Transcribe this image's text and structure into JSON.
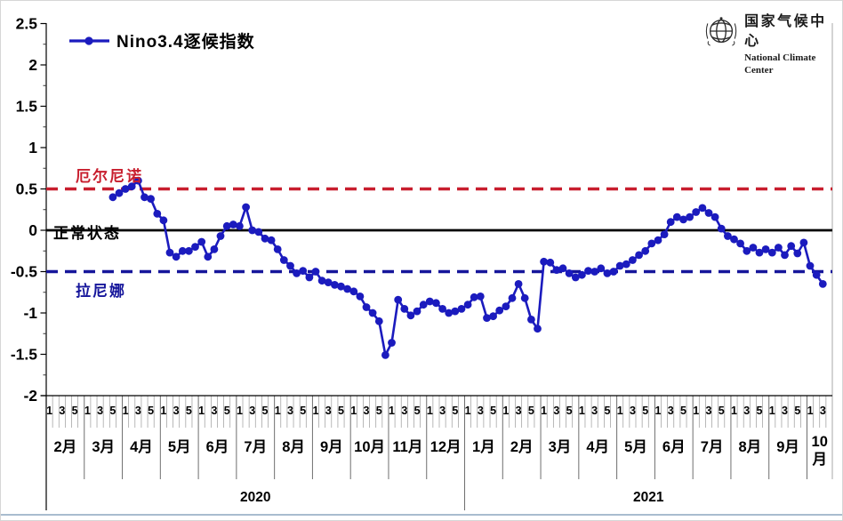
{
  "legend": {
    "label": "Nino3.4逐候指数"
  },
  "logo": {
    "cn": "国家气候中心",
    "en": "National Climate Center"
  },
  "annotations": {
    "el_nino": "厄尔尼诺",
    "normal": "正常状态",
    "la_nina": "拉尼娜"
  },
  "colors": {
    "series": "#1b1bbe",
    "el_nino_line": "#c81e2e",
    "la_nina_line": "#16169b",
    "normal_line": "#000000",
    "grid": "#8f8f8f",
    "axis": "#000000"
  },
  "chart_data": {
    "type": "line",
    "title": "Nino3.4逐候指数",
    "ylabel": "",
    "xlabel": "",
    "ylim": [
      -2,
      2.5
    ],
    "y_ticks": [
      2.5,
      2,
      1.5,
      1,
      0.5,
      0,
      -0.5,
      -1,
      -1.5,
      -2
    ],
    "pentad_tick_labels": [
      "1",
      "3",
      "5"
    ],
    "thresholds": {
      "el_nino": 0.5,
      "normal": 0,
      "la_nina": -0.5
    },
    "x_axis": {
      "years": [
        {
          "label": "2020",
          "months": [
            {
              "label": "2月",
              "pentads": 6
            },
            {
              "label": "3月",
              "pentads": 6
            },
            {
              "label": "4月",
              "pentads": 6
            },
            {
              "label": "5月",
              "pentads": 6
            },
            {
              "label": "6月",
              "pentads": 6
            },
            {
              "label": "7月",
              "pentads": 6
            },
            {
              "label": "8月",
              "pentads": 6
            },
            {
              "label": "9月",
              "pentads": 6
            },
            {
              "label": "10月",
              "pentads": 6
            },
            {
              "label": "11月",
              "pentads": 6
            },
            {
              "label": "12月",
              "pentads": 6
            }
          ]
        },
        {
          "label": "2021",
          "months": [
            {
              "label": "1月",
              "pentads": 6
            },
            {
              "label": "2月",
              "pentads": 6
            },
            {
              "label": "3月",
              "pentads": 6
            },
            {
              "label": "4月",
              "pentads": 6
            },
            {
              "label": "5月",
              "pentads": 6
            },
            {
              "label": "6月",
              "pentads": 6
            },
            {
              "label": "7月",
              "pentads": 6
            },
            {
              "label": "8月",
              "pentads": 6
            },
            {
              "label": "9月",
              "pentads": 6
            },
            {
              "label": "10月",
              "pentads": 4
            }
          ]
        }
      ]
    },
    "series": [
      {
        "name": "Nino3.4逐候指数",
        "start_pentad_offset": 10,
        "start_note": "first value = 2020年3月第5候; one value per pentad (候)",
        "values": [
          0.4,
          0.45,
          0.5,
          0.53,
          0.6,
          0.4,
          0.38,
          0.2,
          0.12,
          -0.27,
          -0.32,
          -0.25,
          -0.25,
          -0.2,
          -0.14,
          -0.32,
          -0.23,
          -0.07,
          0.05,
          0.07,
          0.05,
          0.28,
          0.0,
          -0.02,
          -0.1,
          -0.12,
          -0.23,
          -0.36,
          -0.43,
          -0.52,
          -0.49,
          -0.57,
          -0.5,
          -0.61,
          -0.63,
          -0.66,
          -0.68,
          -0.71,
          -0.74,
          -0.8,
          -0.93,
          -1.0,
          -1.1,
          -1.51,
          -1.36,
          -0.84,
          -0.95,
          -1.03,
          -0.98,
          -0.9,
          -0.86,
          -0.88,
          -0.95,
          -1.0,
          -0.98,
          -0.95,
          -0.9,
          -0.81,
          -0.8,
          -1.06,
          -1.04,
          -0.97,
          -0.92,
          -0.82,
          -0.65,
          -0.82,
          -1.08,
          -1.19,
          -0.38,
          -0.39,
          -0.48,
          -0.46,
          -0.52,
          -0.57,
          -0.54,
          -0.49,
          -0.5,
          -0.46,
          -0.52,
          -0.5,
          -0.43,
          -0.41,
          -0.36,
          -0.3,
          -0.25,
          -0.16,
          -0.12,
          -0.05,
          0.1,
          0.16,
          0.13,
          0.16,
          0.22,
          0.27,
          0.21,
          0.16,
          0.02,
          -0.07,
          -0.11,
          -0.16,
          -0.25,
          -0.21,
          -0.27,
          -0.23,
          -0.27,
          -0.21,
          -0.3,
          -0.19,
          -0.28,
          -0.15,
          -0.43,
          -0.54,
          -0.65
        ]
      }
    ]
  }
}
